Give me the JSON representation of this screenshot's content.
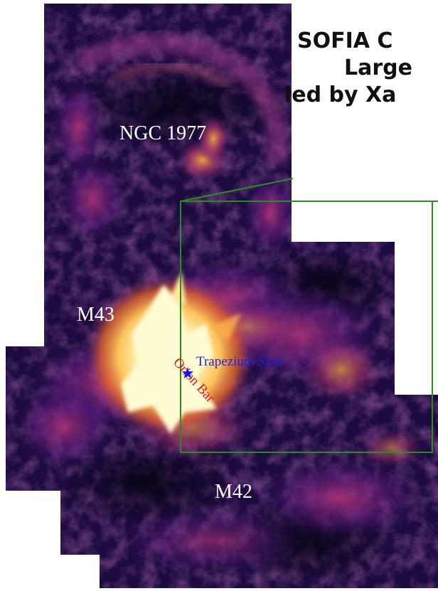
{
  "title_lines": [
    "SOFIA C",
    "Large",
    "led by Xa"
  ],
  "labels": {
    "ngc1977": "NGC 1977",
    "m43": "M43",
    "m42": "M42",
    "trapezium": "Trapezium Stars",
    "orion_bar": "Orion Bar"
  },
  "colors": {
    "box": "#2e8b22",
    "trapezium": "#1f1fd6",
    "orion_bar": "#e01515",
    "region_label": "#ffffff",
    "trapezium_marker": "#1212ee"
  },
  "marker": {
    "icon": "star-icon",
    "glyph": "★"
  }
}
